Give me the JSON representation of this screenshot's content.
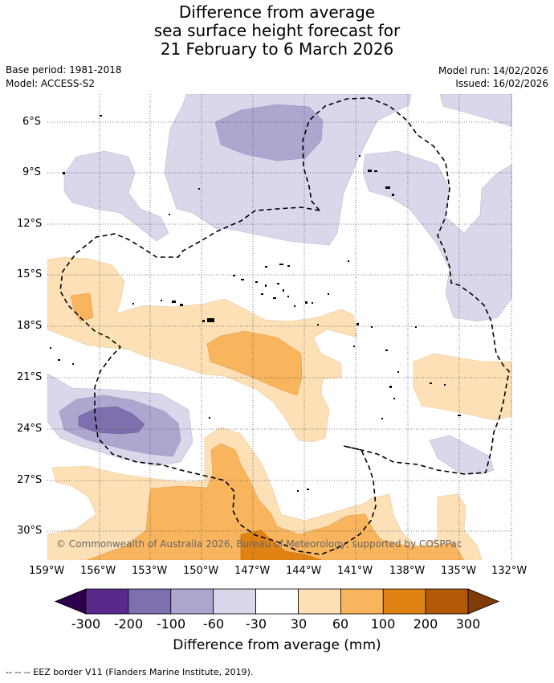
{
  "title": {
    "line1": "Difference from average",
    "line2": "sea surface height forecast for",
    "line3": "21 February to 6 March 2026"
  },
  "meta": {
    "base_period": "Base period: 1981-2018",
    "model": "Model: ACCESS-S2",
    "model_run": "Model run: 14/02/2026",
    "issued": "Issued: 16/02/2026"
  },
  "map": {
    "lat_labels": [
      "6°S",
      "9°S",
      "12°S",
      "15°S",
      "18°S",
      "21°S",
      "24°S",
      "27°S",
      "30°S"
    ],
    "lon_labels": [
      "159°W",
      "156°W",
      "153°W",
      "150°W",
      "147°W",
      "144°W",
      "141°W",
      "138°W",
      "135°W",
      "132°W"
    ],
    "copyright": "© Commonwealth of Australia 2026, Bureau of Meteorology, supported by COSPPac"
  },
  "colorbar": {
    "title": "Difference from average (mm)",
    "labels": [
      "-300",
      "-200",
      "-100",
      "-60",
      "-30",
      "30",
      "60",
      "100",
      "200",
      "300"
    ],
    "colors": [
      "#5a2a8a",
      "#7e6fae",
      "#afa6d0",
      "#d8d8ea",
      "#ffffff",
      "#fee0b6",
      "#f9b45e",
      "#e08214",
      "#b35806"
    ],
    "under_color": "#2d004b",
    "over_color": "#7f3b08"
  },
  "footnote": "--  --  -- EEZ border V11 (Flanders Marine Institute, 2019)."
}
